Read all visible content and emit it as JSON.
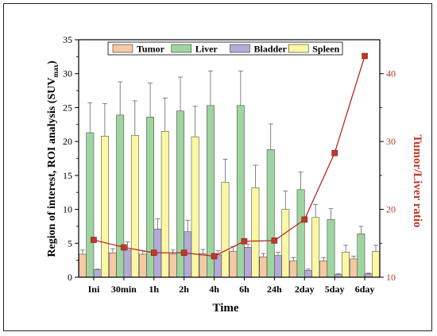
{
  "chart_data": {
    "type": "bar",
    "xlabel": "Time",
    "ylabel": "Region of interest, ROI analysis (SUV",
    "ylabel_sub": "max",
    "ylabel_close": ")",
    "y2label": "Tumor/Liver ratio",
    "categories": [
      "Ini",
      "30min",
      "1h",
      "2h",
      "4h",
      "6h",
      "24h",
      "2day",
      "5day",
      "6day"
    ],
    "ylim": [
      0,
      35
    ],
    "yticks": [
      "0",
      "5",
      "10",
      "15",
      "20",
      "25",
      "30",
      "35"
    ],
    "y2lim": [
      10,
      45
    ],
    "y2ticks": [
      "10",
      "20",
      "30",
      "40"
    ],
    "legend_position": "top",
    "series": [
      {
        "name": "Tumor",
        "color": "#f5c9a3",
        "values": [
          3.4,
          3.6,
          3.4,
          3.4,
          3.5,
          3.8,
          3.0,
          2.4,
          2.4,
          2.7
        ],
        "errors": [
          0.6,
          0.6,
          0.5,
          0.6,
          0.6,
          0.7,
          0.5,
          0.5,
          0.5,
          0.4
        ]
      },
      {
        "name": "Liver",
        "color": "#9fd4a0",
        "values": [
          21.3,
          23.9,
          23.6,
          24.5,
          25.3,
          25.3,
          18.8,
          12.9,
          8.5,
          6.4
        ],
        "errors": [
          4.4,
          4.9,
          5.0,
          5.0,
          5.1,
          5.1,
          3.8,
          2.6,
          1.6,
          1.1
        ]
      },
      {
        "name": "Bladder",
        "color": "#b5a9d8",
        "values": [
          1.1,
          4.0,
          7.1,
          6.7,
          3.3,
          4.4,
          3.2,
          1.0,
          0.4,
          0.5
        ],
        "errors": [
          0.1,
          1.2,
          1.5,
          1.7,
          0.6,
          0.5,
          0.5,
          0.2,
          0.1,
          0.1
        ]
      },
      {
        "name": "Spleen",
        "color": "#fbf7a3",
        "values": [
          20.8,
          20.9,
          21.5,
          20.7,
          14.0,
          13.2,
          10.0,
          8.8,
          3.7,
          3.8
        ],
        "errors": [
          4.8,
          5.1,
          4.9,
          4.5,
          3.4,
          3.3,
          2.7,
          1.9,
          1.0,
          0.9
        ]
      }
    ],
    "ratio_series": {
      "name": "Tumor/Liver ratio",
      "color": "#b52a22",
      "marker_color": "#c0392b",
      "values": [
        15.5,
        14.4,
        13.6,
        13.6,
        13.1,
        15.3,
        15.4,
        18.5,
        28.3,
        42.6
      ]
    }
  }
}
